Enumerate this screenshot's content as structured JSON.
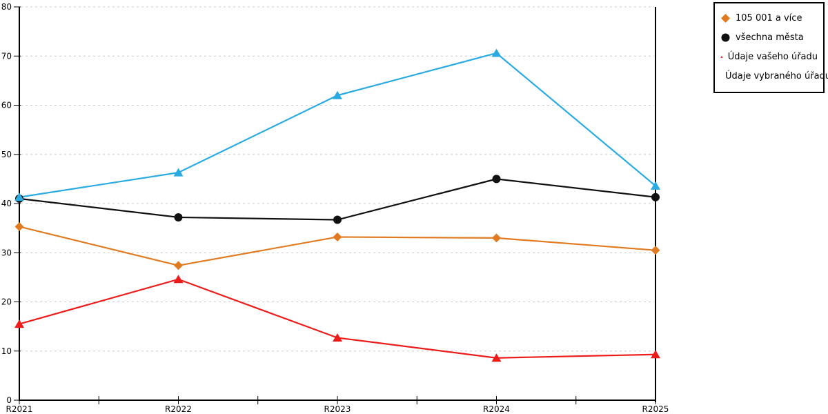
{
  "chart_data": {
    "type": "line",
    "title": "",
    "xlabel": "",
    "ylabel": "",
    "x_categories": [
      "R2021",
      "R2022",
      "R2023",
      "R2024",
      "R2025"
    ],
    "series": [
      {
        "name": "105 001 a více",
        "marker": "diamond",
        "color": "#E07B21",
        "values": [
          35.3,
          27.4,
          33.2,
          33.0,
          30.5
        ]
      },
      {
        "name": "všechna města",
        "marker": "circle",
        "color": "#111111",
        "values": [
          41.0,
          37.2,
          36.7,
          45.0,
          41.3
        ]
      },
      {
        "name": "Údaje vašeho úřadu",
        "marker": "triangle",
        "color": "#EE1B1B",
        "values": [
          15.5,
          24.6,
          12.7,
          8.6,
          9.3
        ]
      },
      {
        "name": "Údaje vybraného úřadu",
        "marker": "triangle",
        "color": "#29ABE2",
        "values": [
          41.3,
          46.3,
          62.0,
          70.6,
          43.6
        ]
      }
    ],
    "ylim": [
      0,
      80
    ],
    "ytick_step": 10,
    "ytick_labels": [
      "0",
      "10",
      "20",
      "30",
      "40",
      "50",
      "60",
      "70",
      "80"
    ],
    "grid": "horizontal-dashed",
    "grid_color": "#c9c9c9",
    "axis_color": "#000000",
    "legend_position": "top-right"
  }
}
